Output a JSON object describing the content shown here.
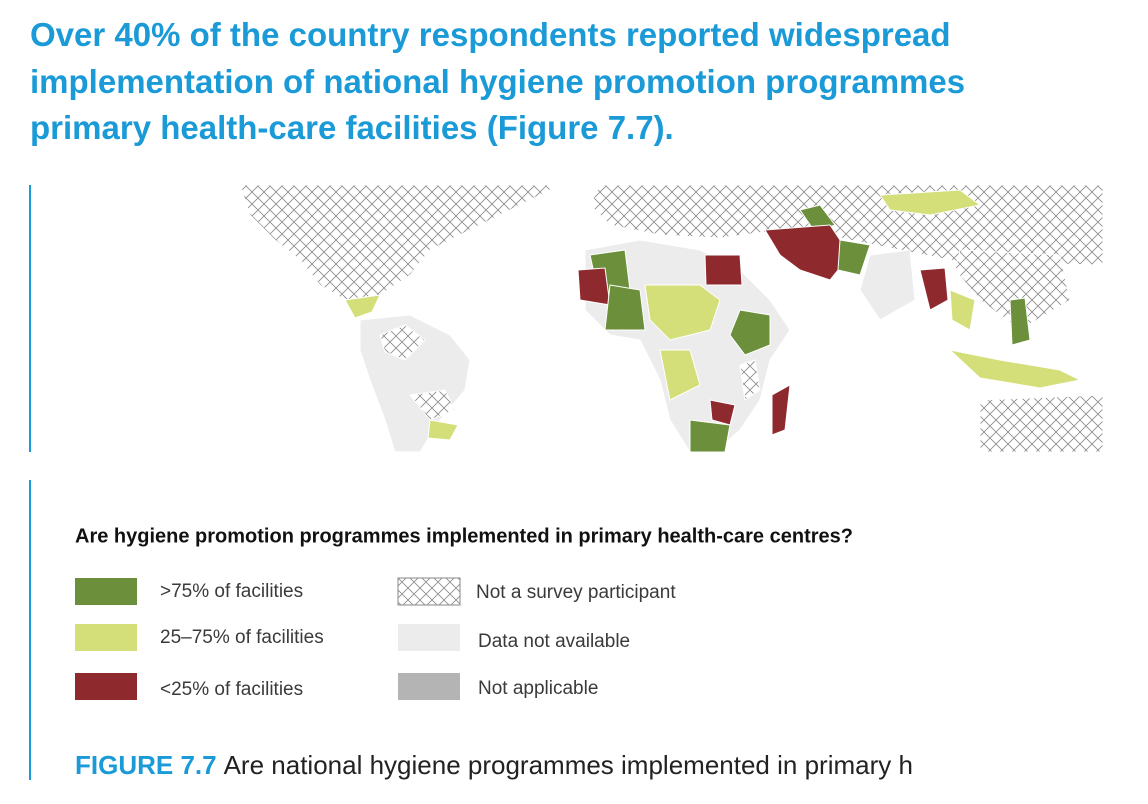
{
  "heading": {
    "lines": [
      "Over 40% of the country respondents reported widespread",
      "implementation of national hygiene promotion programmes",
      "primary health-care facilities (Figure 7.7)."
    ]
  },
  "legend": {
    "title": "Are hygiene promotion programmes implemented in primary health-care centres?",
    "items": [
      {
        "label": ">75% of facilities",
        "color": "#6b8f3b"
      },
      {
        "label": "25–75% of facilities",
        "color": "#d4df7a"
      },
      {
        "label": "<25% of facilities",
        "color": "#8e2a2e"
      },
      {
        "label": "Not a survey participant"
      },
      {
        "label": "Data not available",
        "color": "#ececec"
      },
      {
        "label": "Not applicable",
        "color": "#b4b4b4"
      }
    ]
  },
  "caption": {
    "label": "FIGURE 7.7",
    "text": "Are national hygiene programmes implemented in primary h"
  }
}
